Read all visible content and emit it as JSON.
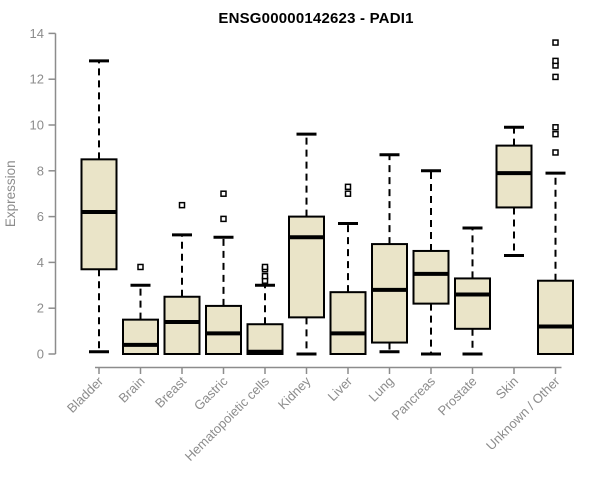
{
  "chart_data": {
    "type": "boxplot",
    "title": "ENSG00000142623 - PADI1",
    "ylabel": "Expression",
    "xlabel": "",
    "ylim": [
      0,
      14
    ],
    "yticks": [
      0,
      2,
      4,
      6,
      8,
      10,
      12,
      14
    ],
    "grid": false,
    "legend": false,
    "categories": [
      "Bladder",
      "Brain",
      "Breast",
      "Gastric",
      "Hematopoietic cells",
      "Kidney",
      "Liver",
      "Lung",
      "Pancreas",
      "Prostate",
      "Skin",
      "Unknown / Other"
    ],
    "series": [
      {
        "name": "Bladder",
        "whisker_low": 0.1,
        "q1": 3.7,
        "median": 6.2,
        "q3": 8.5,
        "whisker_high": 12.8,
        "outliers": []
      },
      {
        "name": "Brain",
        "whisker_low": 0.0,
        "q1": 0.0,
        "median": 0.4,
        "q3": 1.5,
        "whisker_high": 3.0,
        "outliers": [
          3.8
        ]
      },
      {
        "name": "Breast",
        "whisker_low": 0.0,
        "q1": 0.0,
        "median": 1.4,
        "q3": 2.5,
        "whisker_high": 5.2,
        "outliers": [
          6.5
        ]
      },
      {
        "name": "Gastric",
        "whisker_low": 0.0,
        "q1": 0.0,
        "median": 0.9,
        "q3": 2.1,
        "whisker_high": 5.1,
        "outliers": [
          5.9,
          7.0
        ]
      },
      {
        "name": "Hematopoietic cells",
        "whisker_low": 0.0,
        "q1": 0.0,
        "median": 0.1,
        "q3": 1.3,
        "whisker_high": 3.0,
        "outliers": [
          3.2,
          3.4,
          3.7,
          3.8
        ]
      },
      {
        "name": "Kidney",
        "whisker_low": 0.0,
        "q1": 1.6,
        "median": 5.1,
        "q3": 6.0,
        "whisker_high": 9.6,
        "outliers": []
      },
      {
        "name": "Liver",
        "whisker_low": 0.0,
        "q1": 0.0,
        "median": 0.9,
        "q3": 2.7,
        "whisker_high": 5.7,
        "outliers": [
          7.0,
          7.3
        ]
      },
      {
        "name": "Lung",
        "whisker_low": 0.1,
        "q1": 0.5,
        "median": 2.8,
        "q3": 4.8,
        "whisker_high": 8.7,
        "outliers": []
      },
      {
        "name": "Pancreas",
        "whisker_low": 0.0,
        "q1": 2.2,
        "median": 3.5,
        "q3": 4.5,
        "whisker_high": 8.0,
        "outliers": []
      },
      {
        "name": "Prostate",
        "whisker_low": 0.0,
        "q1": 1.1,
        "median": 2.6,
        "q3": 3.3,
        "whisker_high": 5.5,
        "outliers": []
      },
      {
        "name": "Skin",
        "whisker_low": 4.3,
        "q1": 6.4,
        "median": 7.9,
        "q3": 9.1,
        "whisker_high": 9.9,
        "outliers": []
      },
      {
        "name": "Unknown / Other",
        "whisker_low": 0.0,
        "q1": 0.0,
        "median": 1.2,
        "q3": 3.2,
        "whisker_high": 7.9,
        "outliers": [
          8.8,
          9.6,
          9.9,
          12.1,
          12.6,
          12.8,
          13.6
        ]
      }
    ],
    "colors": {
      "box_fill": "#EAE4C8",
      "box_border": "#000000",
      "median": "#000000",
      "whisker": "#000000",
      "axis": "#8C8C8C",
      "tick_label": "#8C8C8C",
      "title": "#000000",
      "background": "#FFFFFF"
    }
  }
}
